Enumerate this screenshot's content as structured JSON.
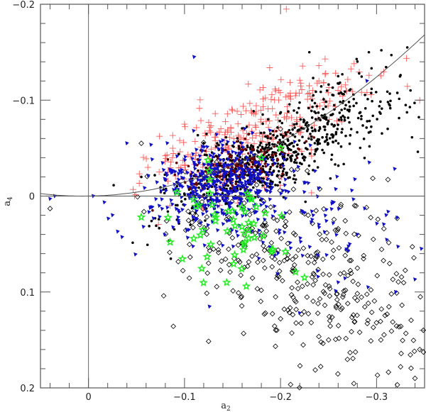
{
  "chart_data": {
    "type": "scatter",
    "title": "",
    "xlabel": "a2",
    "xlabel_sub": "2",
    "ylabel": "a4",
    "ylabel_sub": "4",
    "xlim": [
      0.05,
      -0.35
    ],
    "ylim": [
      -0.2,
      0.2
    ],
    "x_inverted": true,
    "y_inverted": true,
    "x_ticks": [
      {
        "v": 0,
        "label": "0"
      },
      {
        "v": -0.1,
        "label": "−0.1"
      },
      {
        "v": -0.2,
        "label": "−0.2"
      },
      {
        "v": -0.3,
        "label": "−0.3"
      }
    ],
    "y_ticks": [
      {
        "v": -0.2,
        "label": "−0.2"
      },
      {
        "v": -0.1,
        "label": "−0.1"
      },
      {
        "v": 0,
        "label": "0"
      },
      {
        "v": 0.1,
        "label": "0.1"
      },
      {
        "v": 0.2,
        "label": "0.2"
      }
    ],
    "minor_tick_step": 0.02,
    "grid": false,
    "legend": null,
    "reference_lines": [
      {
        "type": "vertical",
        "x": 0
      },
      {
        "type": "horizontal",
        "y": 0
      },
      {
        "type": "curve",
        "description": "parabola a4 = -1.33*a2^2 + 0.015*a2",
        "coef": [
          0,
          0.015,
          -1.33
        ]
      }
    ],
    "colors": {
      "crosses": "#ff5a5a",
      "dots": "#000000",
      "triangles": "#1010c8",
      "stars": "#22ee22",
      "diamonds": "#000000",
      "dark_red": "#6a0000"
    },
    "generator": {
      "seed": 7
    },
    "series": [
      {
        "name": "red crosses",
        "marker": "plus",
        "color": "#ff5a5a",
        "clusters": [
          {
            "n": 230,
            "cx": -0.15,
            "cy": -0.055,
            "sx": 0.045,
            "sy": 0.025,
            "tilt": -0.35
          },
          {
            "n": 60,
            "cx": -0.245,
            "cy": -0.11,
            "sx": 0.04,
            "sy": 0.015,
            "tilt": -0.3
          }
        ],
        "points": [
          [
            -0.206,
            -0.195
          ],
          [
            -0.24,
            -0.12
          ],
          [
            -0.245,
            -0.118
          ],
          [
            -0.23,
            -0.115
          ],
          [
            -0.345,
            -0.1
          ],
          [
            -0.29,
            -0.108
          ],
          [
            -0.08,
            -0.042
          ],
          [
            -0.095,
            -0.058
          ],
          [
            -0.1,
            -0.075
          ]
        ]
      },
      {
        "name": "black dots",
        "marker": "dot",
        "color": "#000000",
        "clusters": [
          {
            "n": 600,
            "cx": -0.175,
            "cy": -0.035,
            "sx": 0.05,
            "sy": 0.02,
            "tilt": -0.42
          },
          {
            "n": 140,
            "cx": -0.27,
            "cy": -0.085,
            "sx": 0.035,
            "sy": 0.022,
            "tilt": -0.3
          }
        ],
        "points": [
          [
            -0.332,
            -0.155
          ],
          [
            -0.292,
            -0.15
          ],
          [
            -0.305,
            -0.152
          ],
          [
            -0.23,
            -0.15
          ],
          [
            -0.26,
            -0.125
          ],
          [
            -0.055,
            -0.02
          ],
          [
            -0.133,
            0.004
          ]
        ]
      },
      {
        "name": "dark red dots",
        "marker": "dot",
        "color": "#6a0000",
        "clusters": [
          {
            "n": 180,
            "cx": -0.15,
            "cy": -0.03,
            "sx": 0.03,
            "sy": 0.012,
            "tilt": -0.3
          }
        ],
        "points": []
      },
      {
        "name": "blue triangles",
        "marker": "triangle",
        "color": "#1010c8",
        "clusters": [
          {
            "n": 420,
            "cx": -0.135,
            "cy": -0.012,
            "sx": 0.035,
            "sy": 0.02,
            "tilt": -0.15
          },
          {
            "n": 120,
            "cx": -0.2,
            "cy": 0.02,
            "sx": 0.06,
            "sy": 0.035,
            "tilt": 0.0
          }
        ],
        "points": [
          [
            -0.005,
            0.0
          ],
          [
            -0.025,
            0.02
          ],
          [
            0.04,
            0.003
          ],
          [
            0.035,
            0.0
          ],
          [
            -0.04,
            -0.055
          ],
          [
            -0.11,
            -0.145
          ],
          [
            -0.29,
            -0.12
          ],
          [
            -0.31,
            0.02
          ],
          [
            -0.28,
            0.04
          ],
          [
            -0.26,
            0.09
          ],
          [
            -0.32,
            0.1
          ],
          [
            -0.34,
            0.087
          ]
        ]
      },
      {
        "name": "green stars",
        "marker": "star",
        "color": "#22ee22",
        "clusters": [
          {
            "n": 55,
            "cx": -0.145,
            "cy": 0.03,
            "sx": 0.03,
            "sy": 0.03,
            "tilt": 0.3
          }
        ],
        "points": [
          [
            -0.055,
            0.022
          ],
          [
            -0.085,
            0.048
          ],
          [
            -0.225,
            0.085
          ],
          [
            -0.205,
            0.058
          ],
          [
            -0.18,
            -0.04
          ],
          [
            -0.2,
            -0.05
          ]
        ]
      },
      {
        "name": "open diamonds",
        "marker": "diamond",
        "color": "#000000",
        "clusters": [
          {
            "n": 330,
            "cx": -0.24,
            "cy": 0.085,
            "sx": 0.06,
            "sy": 0.05,
            "tilt": 0.35
          },
          {
            "n": 60,
            "cx": -0.155,
            "cy": 0.045,
            "sx": 0.035,
            "sy": 0.02,
            "tilt": 0.2
          }
        ],
        "points": [
          [
            0.04,
            0.013
          ],
          [
            -0.055,
            -0.055
          ],
          [
            -0.34,
            0.19
          ],
          [
            -0.325,
            0.178
          ],
          [
            -0.345,
            0.16
          ],
          [
            -0.25,
            0.15
          ],
          [
            -0.2,
            -0.07
          ],
          [
            -0.125,
            0.07
          ]
        ]
      }
    ]
  }
}
